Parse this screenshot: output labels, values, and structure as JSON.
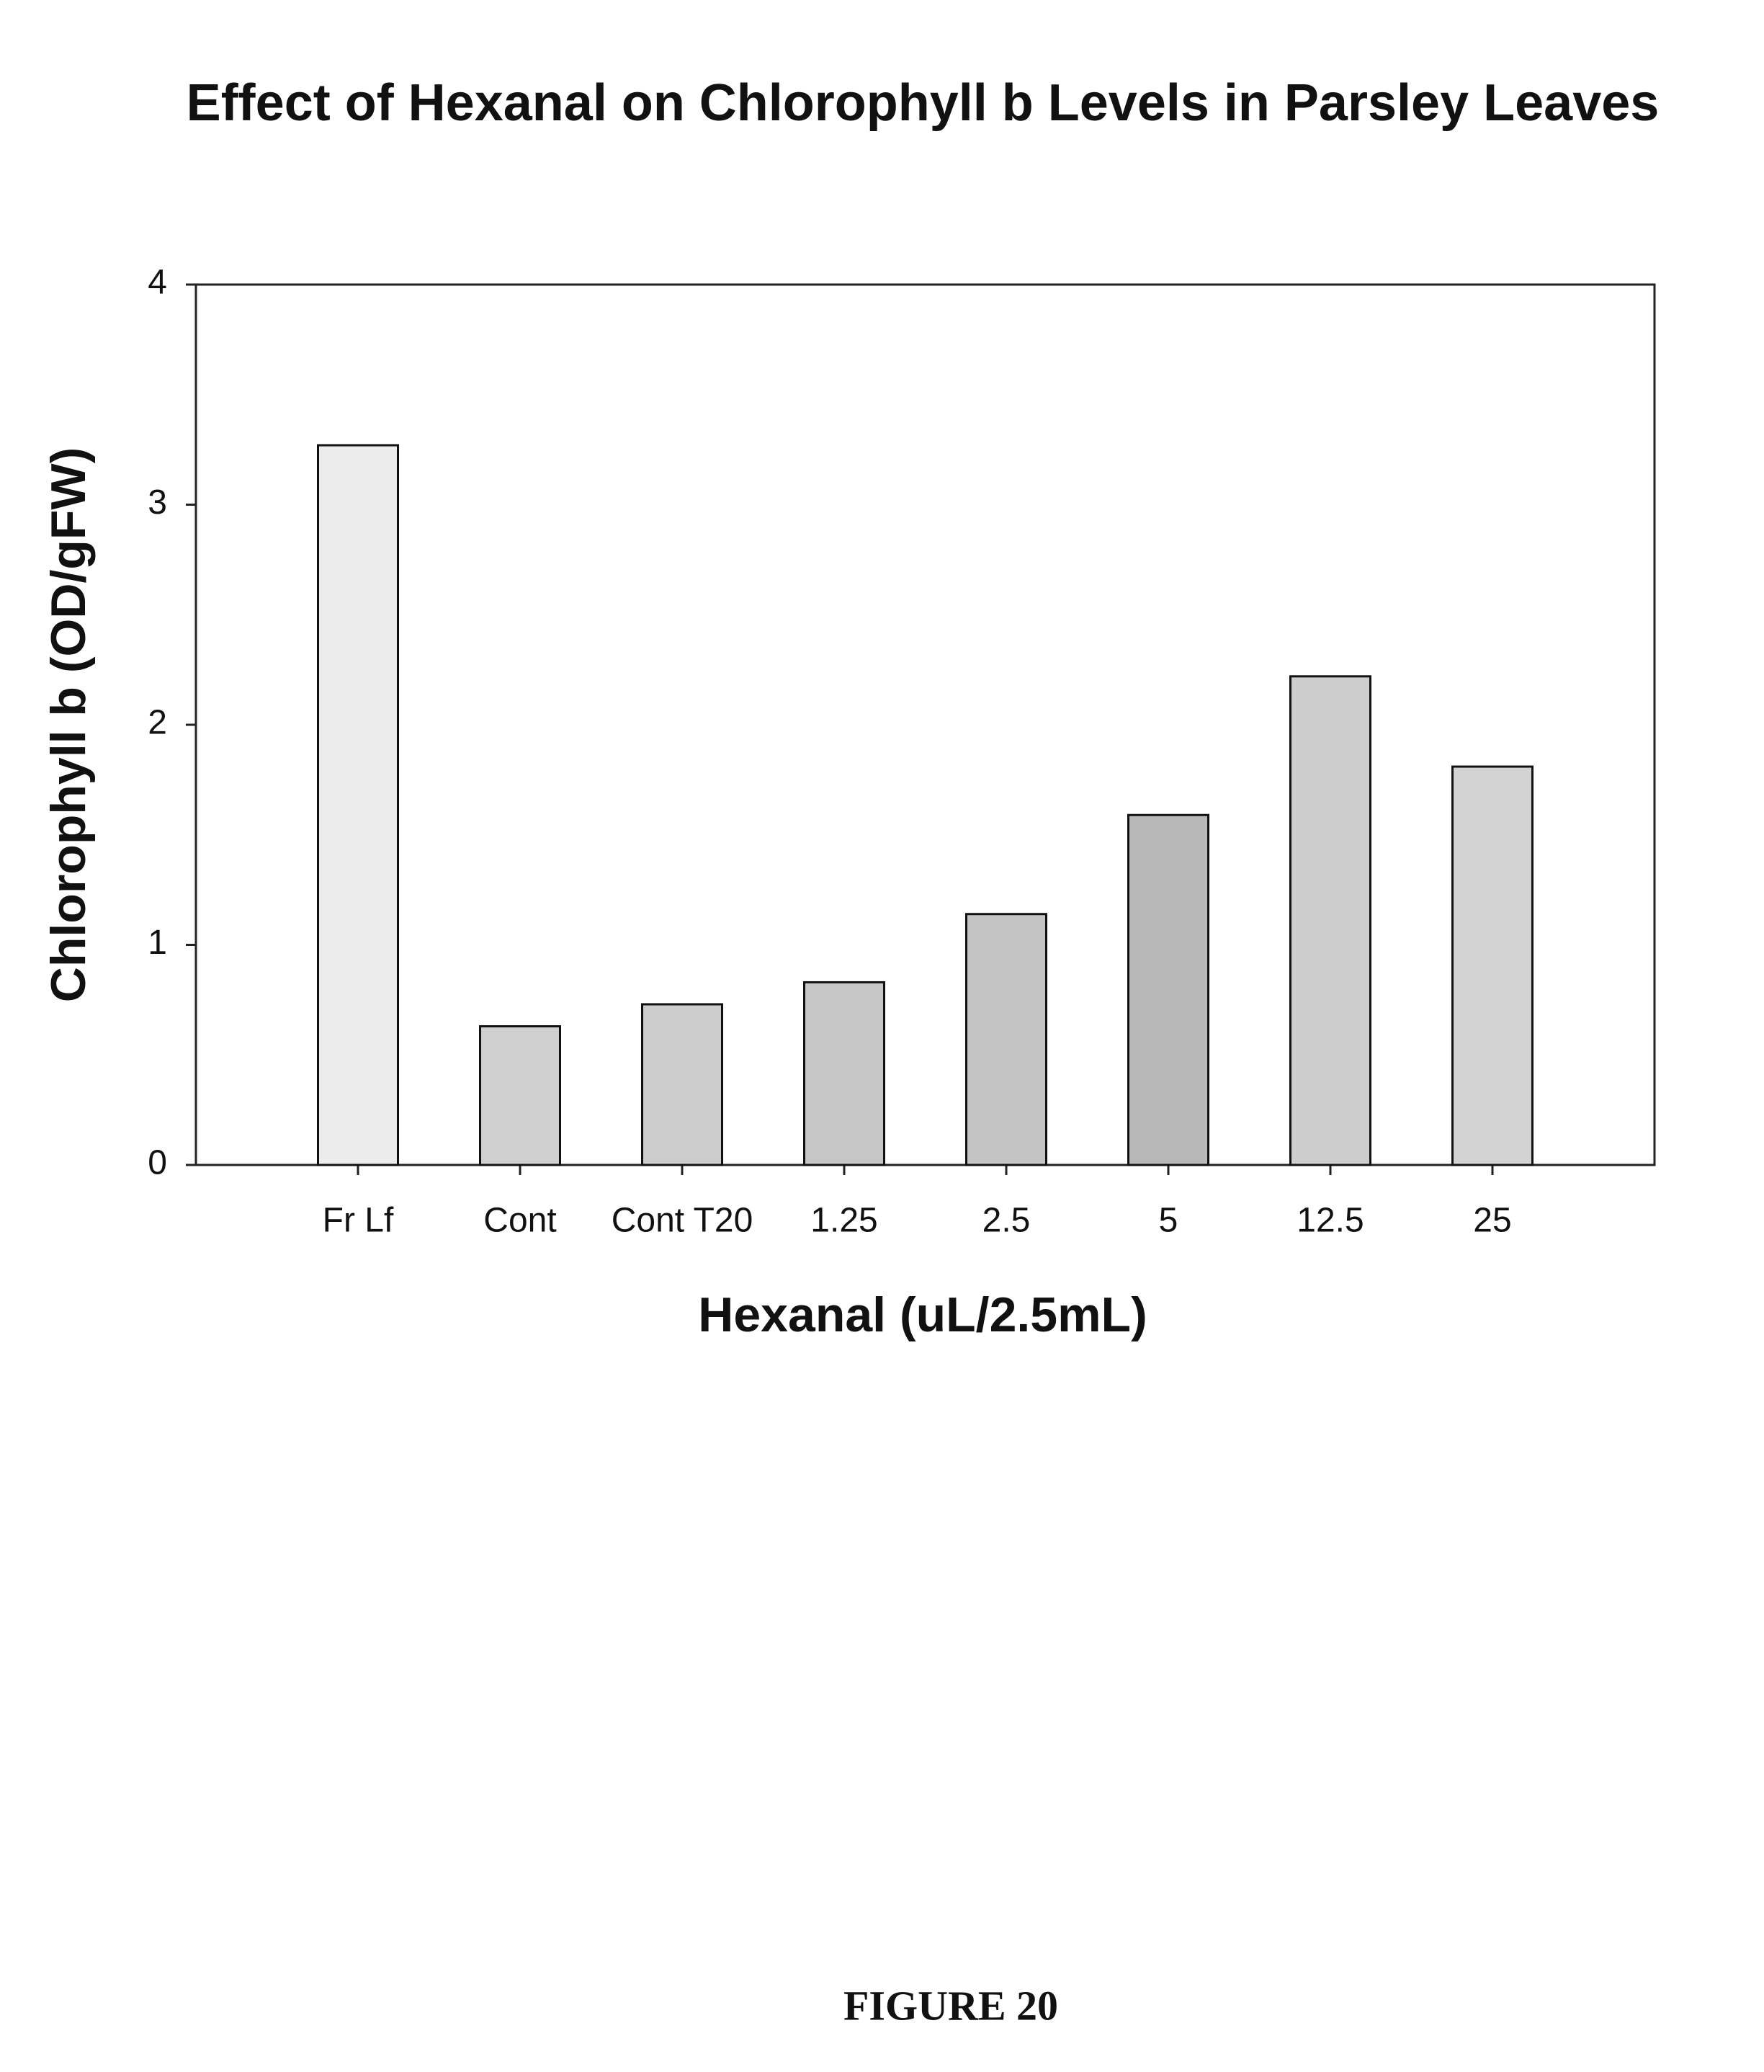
{
  "chart_data": {
    "type": "bar",
    "title": "Effect of Hexanal on Chlorophyll b Levels in Parsley Leaves",
    "x_label": "Hexanal (uL/2.5mL)",
    "y_label": "Chlorophyll b (OD/gFW)",
    "categories": [
      "Fr Lf",
      "Cont",
      "Cont T20",
      "1.25",
      "2.5",
      "5",
      "12.5",
      "25"
    ],
    "values": [
      3.27,
      0.63,
      0.73,
      0.83,
      1.14,
      1.59,
      2.22,
      1.81
    ],
    "colors": [
      "#ececec",
      "#cfcfcf",
      "#cccccc",
      "#c6c6c6",
      "#c4c4c4",
      "#b8b8b8",
      "#cdcdcd",
      "#d2d2d2"
    ],
    "ylim": [
      0,
      4
    ],
    "yticks": [
      0,
      1,
      2,
      3,
      4
    ],
    "grid": false
  },
  "caption": "FIGURE 20"
}
